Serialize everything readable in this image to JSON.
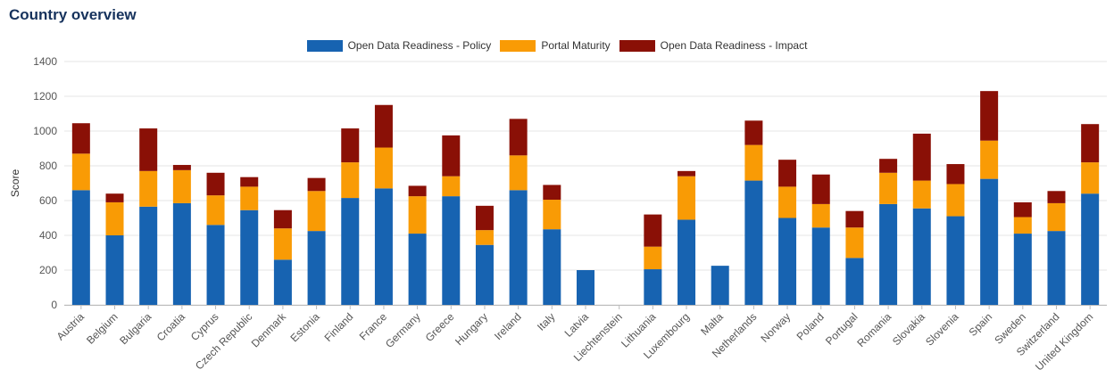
{
  "page": {
    "title": "Country overview"
  },
  "colors": {
    "policy": "#1763b1",
    "portal": "#f99b05",
    "impact": "#8a1006",
    "grid": "#e6e6e6",
    "axis": "#bbbbbb"
  },
  "chart_data": {
    "type": "bar",
    "stacked": true,
    "title": "",
    "xlabel": "",
    "ylabel": "Score",
    "ylim": [
      0,
      1400
    ],
    "yticks": [
      0,
      200,
      400,
      600,
      800,
      1000,
      1200,
      1400
    ],
    "legend_position": "top-center",
    "grid": true,
    "categories": [
      "Austria",
      "Belgium",
      "Bulgaria",
      "Croatia",
      "Cyprus",
      "Czech Republic",
      "Denmark",
      "Estonia",
      "Finland",
      "France",
      "Germany",
      "Greece",
      "Hungary",
      "Ireland",
      "Italy",
      "Latvia",
      "Liechtenstein",
      "Lithuania",
      "Luxembourg",
      "Malta",
      "Netherlands",
      "Norway",
      "Poland",
      "Portugal",
      "Romania",
      "Slovakia",
      "Slovenia",
      "Spain",
      "Sweden",
      "Switzerland",
      "United Kingdom"
    ],
    "series": [
      {
        "name": "Open Data Readiness - Policy",
        "color": "#1763b1",
        "values": [
          660,
          400,
          565,
          585,
          460,
          545,
          260,
          425,
          615,
          670,
          410,
          625,
          345,
          660,
          435,
          200,
          0,
          205,
          490,
          225,
          715,
          500,
          445,
          270,
          580,
          555,
          510,
          725,
          410,
          425,
          640
        ]
      },
      {
        "name": "Portal Maturity",
        "color": "#f99b05",
        "values": [
          210,
          190,
          205,
          190,
          170,
          135,
          180,
          230,
          205,
          235,
          215,
          115,
          85,
          200,
          170,
          0,
          0,
          130,
          250,
          0,
          205,
          180,
          135,
          175,
          180,
          160,
          185,
          220,
          95,
          160,
          180
        ]
      },
      {
        "name": "Open Data Readiness - Impact",
        "color": "#8a1006",
        "values": [
          175,
          50,
          245,
          30,
          130,
          55,
          105,
          75,
          195,
          245,
          60,
          235,
          140,
          210,
          85,
          0,
          0,
          185,
          30,
          0,
          140,
          155,
          170,
          95,
          80,
          270,
          115,
          285,
          85,
          70,
          220
        ]
      }
    ]
  }
}
